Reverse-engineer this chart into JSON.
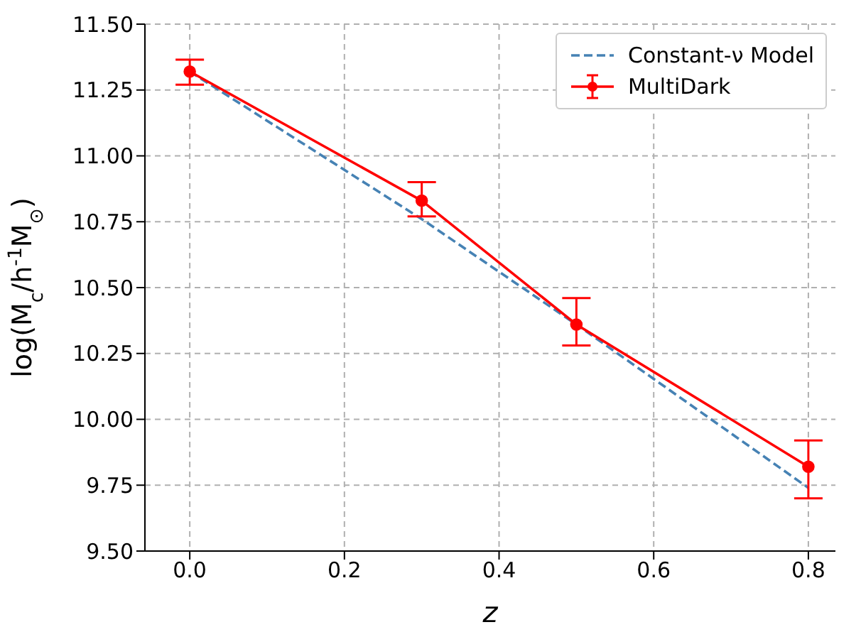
{
  "chart_data": {
    "type": "line",
    "xlabel": "z",
    "ylabel": "log(M$_{c}$/h$^{-1}$M$_{⊙}$)",
    "x": [
      0,
      0.3,
      0.5,
      0.8
    ],
    "series": [
      {
        "name": "Constant-ν Model",
        "color": "#4682b4",
        "line_style": "dashed",
        "marker": "none",
        "values": [
          11.32,
          10.76,
          10.36,
          9.74
        ]
      },
      {
        "name": "MultiDark",
        "color": "#ff0000",
        "line_style": "solid",
        "marker": "circle",
        "values": [
          11.32,
          10.83,
          10.36,
          9.82
        ],
        "errors": [
          [
            11.27,
            11.365
          ],
          [
            10.77,
            10.9
          ],
          [
            10.28,
            10.46
          ],
          [
            9.7,
            9.92
          ]
        ]
      }
    ],
    "xlim": [
      -0.058,
      0.835
    ],
    "xticks": [
      {
        "value": 0,
        "label": "0.0"
      },
      0.2,
      0.4,
      0.6,
      0.8
    ],
    "ylim": [
      9.5,
      11.5
    ],
    "yticks": [
      {
        "value": 9.5,
        "label": "9.50"
      },
      {
        "value": 9.75,
        "label": "9.75"
      },
      {
        "value": 10,
        "label": "10.00"
      },
      {
        "value": 10.25,
        "label": "10.25"
      },
      {
        "value": 10.5,
        "label": "10.50"
      },
      {
        "value": 10.75,
        "label": "10.75"
      },
      {
        "value": 11,
        "label": "11.00"
      },
      {
        "value": 11.25,
        "label": "11.25"
      },
      {
        "value": 11.5,
        "label": "11.50"
      }
    ],
    "grid": true,
    "legend": "top right"
  }
}
